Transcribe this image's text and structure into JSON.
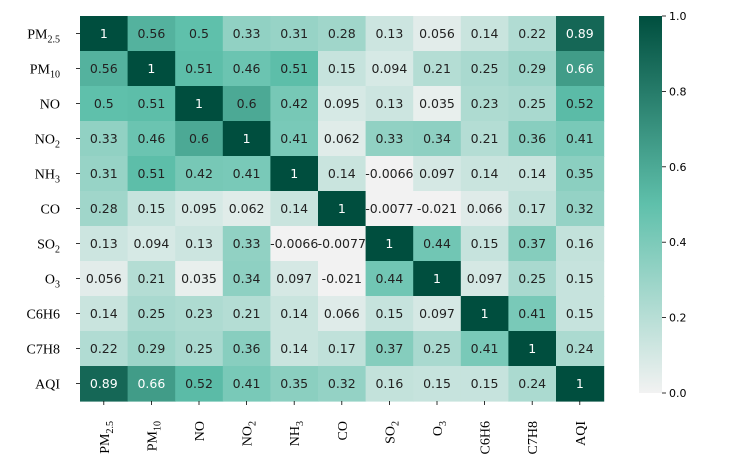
{
  "chart_data": {
    "type": "heatmap",
    "title": "",
    "labels": [
      {
        "base": "PM",
        "sub": "2.5"
      },
      {
        "base": "PM",
        "sub": "10"
      },
      {
        "base": "NO",
        "sub": ""
      },
      {
        "base": "NO",
        "sub": "2"
      },
      {
        "base": "NH",
        "sub": "3"
      },
      {
        "base": "CO",
        "sub": ""
      },
      {
        "base": "SO",
        "sub": "2"
      },
      {
        "base": "O",
        "sub": "3"
      },
      {
        "base": "C6H6",
        "sub": ""
      },
      {
        "base": "C7H8",
        "sub": ""
      },
      {
        "base": "AQI",
        "sub": ""
      }
    ],
    "matrix": [
      [
        1,
        0.56,
        0.5,
        0.33,
        0.31,
        0.28,
        0.13,
        0.056,
        0.14,
        0.22,
        0.89
      ],
      [
        0.56,
        1,
        0.51,
        0.46,
        0.51,
        0.15,
        0.094,
        0.21,
        0.25,
        0.29,
        0.66
      ],
      [
        0.5,
        0.51,
        1,
        0.6,
        0.42,
        0.095,
        0.13,
        0.035,
        0.23,
        0.25,
        0.52
      ],
      [
        0.33,
        0.46,
        0.6,
        1,
        0.41,
        0.062,
        0.33,
        0.34,
        0.21,
        0.36,
        0.41
      ],
      [
        0.31,
        0.51,
        0.42,
        0.41,
        1,
        0.14,
        -0.0066,
        0.097,
        0.14,
        0.14,
        0.35
      ],
      [
        0.28,
        0.15,
        0.095,
        0.062,
        0.14,
        1,
        -0.0077,
        -0.021,
        0.066,
        0.17,
        0.32
      ],
      [
        0.13,
        0.094,
        0.13,
        0.33,
        -0.0066,
        -0.0077,
        1,
        0.44,
        0.15,
        0.37,
        0.16
      ],
      [
        0.056,
        0.21,
        0.035,
        0.34,
        0.097,
        -0.021,
        0.44,
        1,
        0.097,
        0.25,
        0.15
      ],
      [
        0.14,
        0.25,
        0.23,
        0.21,
        0.14,
        0.066,
        0.15,
        0.097,
        1,
        0.41,
        0.15
      ],
      [
        0.22,
        0.29,
        0.25,
        0.36,
        0.14,
        0.17,
        0.37,
        0.25,
        0.41,
        1,
        0.24
      ],
      [
        0.89,
        0.66,
        0.52,
        0.41,
        0.35,
        0.32,
        0.16,
        0.15,
        0.15,
        0.24,
        1
      ]
    ],
    "colorbar": {
      "min": 0.0,
      "max": 1.0,
      "ticks": [
        0.0,
        0.2,
        0.4,
        0.6,
        0.8,
        1.0
      ],
      "tick_labels": [
        "0.0",
        "0.2",
        "0.4",
        "0.6",
        "0.8",
        "1.0"
      ]
    },
    "colors": {
      "low": "#f2f2f2",
      "mid": "#5fc0ab",
      "high": "#004e3e",
      "text_dark": "#222222",
      "text_light": "#ffffff"
    }
  }
}
